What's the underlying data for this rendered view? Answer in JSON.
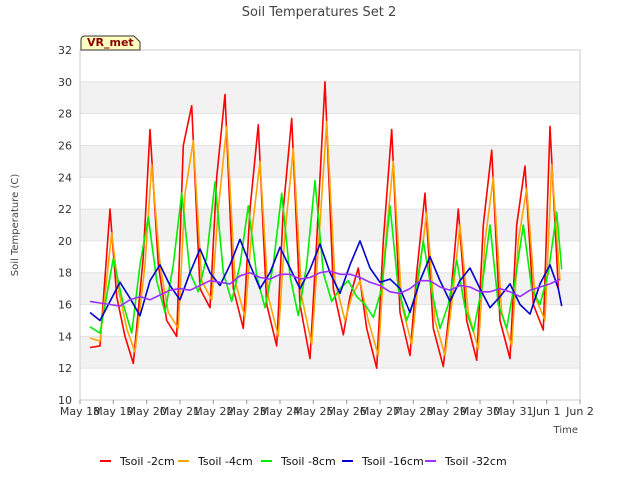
{
  "chart_data": {
    "type": "line",
    "title": "Soil Temperatures Set 2",
    "xlabel": "Time",
    "ylabel": "Soil Temperature (C)",
    "ylim": [
      10,
      32
    ],
    "yticks": [
      10,
      12,
      14,
      16,
      18,
      20,
      22,
      24,
      26,
      28,
      30,
      32
    ],
    "xlim": [
      0,
      15
    ],
    "xticks": [
      0,
      1,
      2,
      3,
      4,
      5,
      6,
      7,
      8,
      9,
      10,
      11,
      12,
      13,
      14,
      15
    ],
    "xtick_labels": [
      "May 18",
      "May 19",
      "May 20",
      "May 21",
      "May 22",
      "May 23",
      "May 24",
      "May 25",
      "May 26",
      "May 27",
      "May 28",
      "May 29",
      "May 30",
      "May 31",
      "Jun 1",
      "Jun 2"
    ],
    "x_unit": "days since May 18",
    "grid": "horizontal bands",
    "legend_position": "bottom",
    "station_label": "VR_met",
    "series": [
      {
        "name": "Tsoil -2cm",
        "color": "#ff0000",
        "x": [
          0.3,
          0.6,
          0.9,
          1.1,
          1.35,
          1.6,
          1.9,
          2.1,
          2.35,
          2.6,
          2.9,
          3.1,
          3.35,
          3.6,
          3.9,
          4.1,
          4.35,
          4.6,
          4.9,
          5.1,
          5.35,
          5.6,
          5.9,
          6.1,
          6.35,
          6.6,
          6.9,
          7.1,
          7.35,
          7.6,
          7.9,
          8.1,
          8.35,
          8.6,
          8.9,
          9.1,
          9.35,
          9.6,
          9.9,
          10.1,
          10.35,
          10.6,
          10.9,
          11.1,
          11.35,
          11.6,
          11.9,
          12.1,
          12.35,
          12.6,
          12.9,
          13.1,
          13.35,
          13.6,
          13.9,
          14.1,
          14.35
        ],
        "values": [
          13.3,
          13.4,
          22.0,
          16.5,
          14.0,
          12.3,
          19.0,
          27.0,
          18.5,
          15.0,
          14.0,
          26.0,
          28.5,
          17.0,
          15.8,
          24.0,
          29.2,
          17.0,
          14.5,
          22.0,
          27.3,
          16.0,
          13.4,
          22.0,
          27.7,
          16.0,
          12.6,
          20.0,
          30.0,
          17.0,
          14.1,
          16.5,
          18.3,
          14.5,
          12.0,
          20.0,
          27.0,
          15.5,
          12.8,
          18.0,
          23.0,
          14.5,
          12.1,
          16.0,
          22.0,
          15.0,
          12.5,
          21.0,
          25.7,
          15.0,
          12.6,
          21.0,
          24.7,
          16.0,
          14.4,
          27.2,
          17.0
        ]
      },
      {
        "name": "Tsoil -4cm",
        "color": "#ffa500",
        "x": [
          0.3,
          0.6,
          0.95,
          1.15,
          1.4,
          1.65,
          1.95,
          2.15,
          2.4,
          2.65,
          2.95,
          3.15,
          3.4,
          3.65,
          3.95,
          4.15,
          4.4,
          4.65,
          4.95,
          5.15,
          5.4,
          5.65,
          5.95,
          6.15,
          6.4,
          6.65,
          6.95,
          7.15,
          7.4,
          7.65,
          7.95,
          8.15,
          8.4,
          8.65,
          8.95,
          9.15,
          9.4,
          9.65,
          9.95,
          10.15,
          10.4,
          10.65,
          10.95,
          11.15,
          11.4,
          11.65,
          11.95,
          12.15,
          12.4,
          12.65,
          12.95,
          13.15,
          13.4,
          13.65,
          13.95,
          14.15,
          14.4
        ],
        "values": [
          13.9,
          13.7,
          20.5,
          17.0,
          14.5,
          13.0,
          18.5,
          24.8,
          18.5,
          15.5,
          14.5,
          23.0,
          26.3,
          17.5,
          16.3,
          22.0,
          27.2,
          17.5,
          15.2,
          20.5,
          25.0,
          16.5,
          14.0,
          20.5,
          25.8,
          16.5,
          13.5,
          19.5,
          27.5,
          17.5,
          15.0,
          16.5,
          17.5,
          15.0,
          12.8,
          19.5,
          25.0,
          16.0,
          13.5,
          17.5,
          21.8,
          15.0,
          12.8,
          16.0,
          21.0,
          15.5,
          13.2,
          20.0,
          24.0,
          15.5,
          13.4,
          20.0,
          23.3,
          16.5,
          15.0,
          24.8,
          17.5
        ]
      },
      {
        "name": "Tsoil -8cm",
        "color": "#00ee00",
        "x": [
          0.3,
          0.6,
          1.0,
          1.3,
          1.55,
          1.8,
          2.05,
          2.3,
          2.55,
          2.8,
          3.05,
          3.3,
          3.55,
          3.8,
          4.05,
          4.3,
          4.55,
          4.8,
          5.05,
          5.3,
          5.55,
          5.8,
          6.05,
          6.3,
          6.55,
          6.8,
          7.05,
          7.3,
          7.55,
          7.8,
          8.05,
          8.3,
          8.55,
          8.8,
          9.05,
          9.3,
          9.55,
          9.8,
          10.05,
          10.3,
          10.55,
          10.8,
          11.05,
          11.3,
          11.55,
          11.8,
          12.05,
          12.3,
          12.55,
          12.8,
          13.05,
          13.3,
          13.55,
          13.8,
          14.05,
          14.3,
          14.45
        ],
        "values": [
          14.6,
          14.2,
          18.9,
          16.0,
          14.2,
          18.5,
          21.5,
          17.5,
          15.5,
          18.5,
          23.0,
          18.0,
          16.8,
          19.0,
          23.7,
          18.0,
          16.2,
          18.5,
          22.2,
          17.8,
          15.8,
          18.5,
          23.0,
          17.8,
          15.3,
          18.5,
          23.8,
          18.0,
          16.2,
          17.0,
          17.5,
          16.5,
          16.0,
          15.2,
          17.0,
          22.2,
          17.0,
          15.0,
          16.5,
          20.0,
          16.8,
          14.5,
          16.0,
          18.8,
          15.8,
          14.3,
          17.0,
          21.0,
          16.0,
          14.5,
          17.5,
          21.0,
          17.0,
          16.0,
          18.0,
          21.8,
          18.2
        ]
      },
      {
        "name": "Tsoil -16cm",
        "color": "#0000cc",
        "x": [
          0.3,
          0.6,
          0.9,
          1.2,
          1.5,
          1.8,
          2.1,
          2.4,
          2.7,
          3.0,
          3.3,
          3.6,
          3.9,
          4.2,
          4.5,
          4.8,
          5.1,
          5.4,
          5.7,
          6.0,
          6.3,
          6.6,
          6.9,
          7.2,
          7.5,
          7.8,
          8.1,
          8.4,
          8.7,
          9.0,
          9.3,
          9.6,
          9.9,
          10.2,
          10.5,
          10.8,
          11.1,
          11.4,
          11.7,
          12.0,
          12.3,
          12.6,
          12.9,
          13.2,
          13.5,
          13.8,
          14.1,
          14.35,
          14.45
        ],
        "values": [
          15.5,
          15.0,
          16.2,
          17.4,
          16.4,
          15.3,
          17.5,
          18.5,
          17.2,
          16.3,
          18.0,
          19.5,
          18.0,
          17.2,
          18.5,
          20.1,
          18.5,
          17.0,
          18.0,
          19.6,
          18.3,
          17.0,
          18.2,
          19.8,
          18.0,
          16.7,
          18.5,
          20.0,
          18.3,
          17.4,
          17.6,
          17.0,
          15.5,
          17.5,
          19.0,
          17.5,
          16.2,
          17.5,
          18.3,
          17.0,
          15.8,
          16.5,
          17.3,
          16.0,
          15.4,
          17.3,
          18.5,
          17.0,
          15.9
        ]
      },
      {
        "name": "Tsoil -32cm",
        "color": "#9b30ff",
        "x": [
          0.3,
          0.6,
          0.9,
          1.2,
          1.5,
          1.8,
          2.1,
          2.4,
          2.7,
          3.0,
          3.3,
          3.6,
          3.9,
          4.2,
          4.5,
          4.8,
          5.1,
          5.4,
          5.7,
          6.0,
          6.3,
          6.6,
          6.9,
          7.2,
          7.5,
          7.8,
          8.1,
          8.4,
          8.7,
          9.0,
          9.3,
          9.6,
          9.9,
          10.2,
          10.5,
          10.8,
          11.1,
          11.4,
          11.7,
          12.0,
          12.3,
          12.6,
          12.9,
          13.2,
          13.5,
          13.8,
          14.1,
          14.4
        ],
        "values": [
          16.2,
          16.1,
          16.0,
          15.9,
          16.3,
          16.5,
          16.3,
          16.6,
          16.9,
          17.0,
          16.9,
          17.2,
          17.5,
          17.4,
          17.3,
          17.8,
          18.0,
          17.7,
          17.6,
          17.9,
          17.9,
          17.6,
          17.7,
          18.0,
          18.1,
          17.9,
          17.9,
          17.7,
          17.4,
          17.2,
          16.8,
          16.7,
          17.0,
          17.5,
          17.5,
          17.1,
          16.9,
          17.2,
          17.1,
          16.8,
          16.8,
          17.0,
          16.8,
          16.5,
          16.9,
          17.1,
          17.3,
          17.6
        ]
      }
    ]
  }
}
